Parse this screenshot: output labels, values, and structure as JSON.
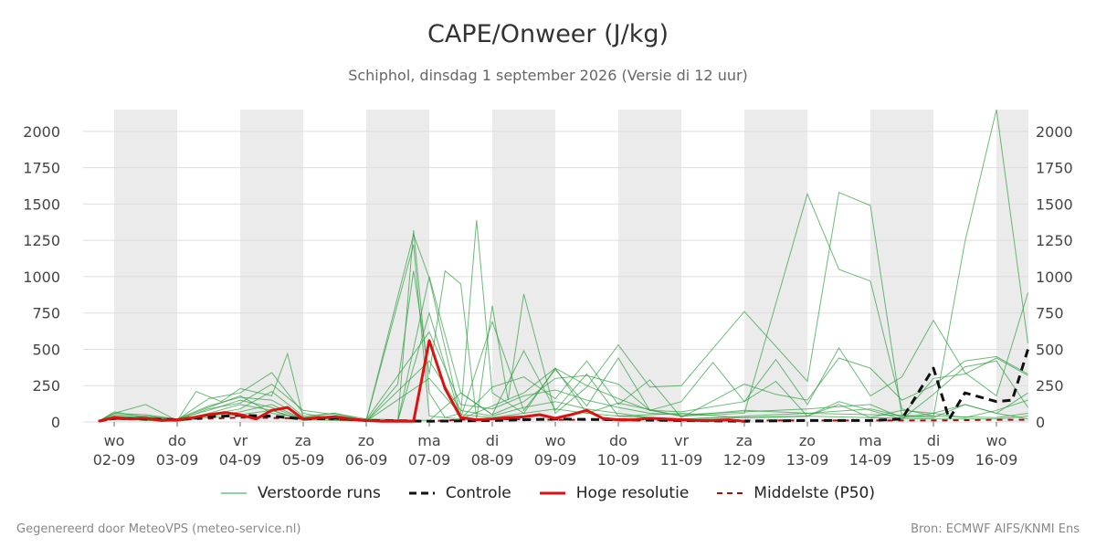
{
  "header": {
    "title": "CAPE/Onweer (J/kg)",
    "subtitle": "Schiphol, dinsdag  1 september 2026 (Versie di 12 uur)"
  },
  "footer": {
    "left": "Gegenereerd door MeteoVPS (meteo-service.nl)",
    "right": "Bron: ECMWF AIFS/KNMI Ens"
  },
  "colors": {
    "ensemble": "#2e9e3e",
    "control": "#111111",
    "high_res": "#dd1111",
    "median": "#a01010",
    "weekend_band": "#ebebeb",
    "grid": "#dddddd"
  },
  "chart_data": {
    "type": "line",
    "title": "CAPE/Onweer (J/kg)",
    "subtitle": "Schiphol, dinsdag  1 september 2026 (Versie di 12 uur)",
    "ylabel": "",
    "xlabel": "",
    "ylim": [
      0,
      2150
    ],
    "yticks": [
      0,
      250,
      500,
      750,
      1000,
      1250,
      1500,
      1750,
      2000
    ],
    "grid": true,
    "legend_position": "bottom",
    "x_range_days": [
      -0.25,
      15.5
    ],
    "x_ticks": [
      {
        "day": 0,
        "weekday": "wo",
        "date": "02-09"
      },
      {
        "day": 1,
        "weekday": "do",
        "date": "03-09"
      },
      {
        "day": 2,
        "weekday": "vr",
        "date": "04-09"
      },
      {
        "day": 3,
        "weekday": "za",
        "date": "05-09"
      },
      {
        "day": 4,
        "weekday": "zo",
        "date": "06-09"
      },
      {
        "day": 5,
        "weekday": "ma",
        "date": "07-09"
      },
      {
        "day": 6,
        "weekday": "di",
        "date": "08-09"
      },
      {
        "day": 7,
        "weekday": "wo",
        "date": "09-09"
      },
      {
        "day": 8,
        "weekday": "do",
        "date": "10-09"
      },
      {
        "day": 9,
        "weekday": "vr",
        "date": "11-09"
      },
      {
        "day": 10,
        "weekday": "za",
        "date": "12-09"
      },
      {
        "day": 11,
        "weekday": "zo",
        "date": "13-09"
      },
      {
        "day": 12,
        "weekday": "ma",
        "date": "14-09"
      },
      {
        "day": 13,
        "weekday": "di",
        "date": "15-09"
      },
      {
        "day": 14,
        "weekday": "wo",
        "date": "16-09"
      }
    ],
    "shaded_days": [
      [
        0,
        1
      ],
      [
        2,
        3
      ],
      [
        4,
        5
      ],
      [
        6,
        7
      ],
      [
        8,
        9
      ],
      [
        10,
        11
      ],
      [
        12,
        13
      ],
      [
        14,
        15.5
      ]
    ],
    "legend": [
      "Verstoorde runs",
      "Controle",
      "Hoge resolutie",
      "Middelste (P50)"
    ],
    "series": [
      {
        "name": "Hoge resolutie",
        "style": "solid-thick",
        "x": [
          -0.25,
          0,
          0.25,
          0.5,
          0.75,
          1,
          1.25,
          1.5,
          1.75,
          2,
          2.25,
          2.5,
          2.75,
          3,
          3.25,
          3.5,
          3.75,
          4,
          4.25,
          4.5,
          4.75,
          5,
          5.25,
          5.5,
          5.75,
          6,
          6.25,
          6.5,
          6.75,
          7,
          7.25,
          7.5,
          7.75,
          8,
          8.25,
          8.5,
          8.75,
          9,
          9.25,
          9.5,
          9.75,
          10
        ],
        "y": [
          5,
          30,
          20,
          25,
          10,
          15,
          30,
          50,
          65,
          50,
          20,
          80,
          100,
          20,
          30,
          35,
          20,
          10,
          5,
          5,
          5,
          560,
          230,
          30,
          15,
          20,
          30,
          35,
          50,
          25,
          50,
          80,
          25,
          15,
          15,
          25,
          20,
          15,
          10,
          10,
          15,
          5
        ]
      },
      {
        "name": "Controle",
        "style": "dashed-thick",
        "x": [
          -0.25,
          0,
          0.5,
          1,
          1.5,
          2,
          2.5,
          3,
          3.5,
          4,
          5,
          6,
          7,
          8,
          9,
          10,
          11,
          12,
          12.5,
          13,
          13.25,
          13.5,
          14,
          14.25,
          14.5
        ],
        "y": [
          5,
          25,
          20,
          15,
          35,
          45,
          40,
          20,
          25,
          10,
          5,
          10,
          20,
          15,
          10,
          5,
          10,
          10,
          20,
          370,
          20,
          200,
          140,
          150,
          500
        ]
      },
      {
        "name": "Middelste (P50)",
        "style": "dashed-thin",
        "x": [
          -0.25,
          0,
          1,
          2,
          3,
          4,
          5,
          5.5,
          6,
          7,
          8,
          9,
          10,
          11,
          12,
          13,
          14,
          14.5
        ],
        "y": [
          5,
          20,
          15,
          30,
          25,
          10,
          5,
          15,
          20,
          15,
          15,
          10,
          10,
          10,
          10,
          10,
          15,
          15
        ]
      }
    ],
    "ensemble_peaks_note_free": true,
    "ensemble_members": [
      {
        "x": [
          -0.25,
          0,
          0.5,
          1,
          1.3,
          1.7,
          2,
          2.5,
          2.75,
          3,
          3.5,
          4,
          5,
          5.5,
          6,
          6.5,
          7,
          7.5,
          8,
          9,
          10,
          11,
          11.5,
          12,
          12.5,
          13,
          13.5,
          14,
          14.5
        ],
        "y": [
          5,
          60,
          120,
          10,
          210,
          140,
          230,
          180,
          470,
          30,
          60,
          20,
          10,
          200,
          50,
          490,
          80,
          330,
          40,
          60,
          30,
          40,
          120,
          30,
          80,
          60,
          120,
          60,
          20
        ]
      },
      {
        "x": [
          -0.25,
          0,
          0.5,
          1,
          1.5,
          2,
          2.5,
          3,
          3.5,
          4,
          4.5,
          4.75,
          5,
          5.25,
          5.5,
          5.75,
          6,
          6.5,
          7,
          7.5,
          8,
          9,
          10,
          11,
          11.5,
          12,
          12.5,
          13,
          13.5,
          14,
          14.5
        ],
        "y": [
          5,
          50,
          40,
          20,
          80,
          150,
          100,
          20,
          40,
          10,
          0,
          1320,
          200,
          30,
          60,
          1390,
          200,
          60,
          370,
          60,
          130,
          40,
          60,
          1570,
          1050,
          970,
          90,
          40,
          1240,
          2150,
          540
        ]
      },
      {
        "x": [
          -0.25,
          0,
          0.5,
          1,
          1.5,
          2,
          2.5,
          3,
          3.5,
          4,
          4.5,
          4.75,
          5,
          5.25,
          5.5,
          5.75,
          6,
          6.25,
          6.5,
          7,
          7.5,
          8,
          8.5,
          9,
          10,
          11,
          11.5,
          12,
          12.5,
          13,
          13.5,
          14,
          14.5
        ],
        "y": [
          5,
          40,
          30,
          10,
          60,
          120,
          80,
          10,
          30,
          5,
          260,
          1040,
          330,
          1040,
          950,
          20,
          800,
          150,
          880,
          60,
          240,
          530,
          240,
          250,
          760,
          280,
          1580,
          1490,
          40,
          300,
          330,
          440,
          320
        ]
      },
      {
        "x": [
          -0.25,
          0,
          0.5,
          1,
          1.5,
          2,
          2.5,
          3,
          3.5,
          4,
          4.75,
          5,
          5.5,
          6,
          6.5,
          7,
          7.5,
          8,
          8.5,
          9,
          9.5,
          10,
          10.5,
          11,
          11.5,
          12,
          12.5,
          13,
          13.5,
          14,
          14.5
        ],
        "y": [
          5,
          70,
          30,
          20,
          100,
          180,
          60,
          30,
          20,
          10,
          1290,
          990,
          30,
          690,
          80,
          360,
          110,
          440,
          80,
          140,
          410,
          140,
          430,
          120,
          510,
          180,
          310,
          700,
          340,
          180,
          890
        ]
      },
      {
        "x": [
          -0.25,
          0,
          0.5,
          1,
          1.5,
          2,
          2.5,
          3,
          3.5,
          4,
          4.5,
          5,
          5.5,
          6,
          6.5,
          7,
          7.5,
          8,
          8.5,
          9,
          10,
          10.5,
          11,
          11.5,
          12,
          12.5,
          13,
          13.5,
          14,
          14.5
        ],
        "y": [
          5,
          30,
          20,
          15,
          160,
          200,
          340,
          60,
          20,
          5,
          5,
          750,
          20,
          240,
          310,
          160,
          420,
          120,
          290,
          30,
          260,
          190,
          150,
          440,
          370,
          150,
          250,
          420,
          450,
          330
        ]
      },
      {
        "x": [
          -0.25,
          0,
          0.5,
          1,
          1.5,
          2,
          2.5,
          3,
          3.5,
          4,
          4.5,
          5,
          5.5,
          6,
          6.5,
          7,
          7.5,
          8,
          8.5,
          9,
          10,
          10.5,
          11,
          11.5,
          12,
          12.5,
          13,
          13.5,
          14,
          14.5
        ],
        "y": [
          5,
          20,
          40,
          10,
          90,
          130,
          260,
          80,
          50,
          10,
          5,
          1000,
          200,
          50,
          140,
          300,
          320,
          260,
          80,
          70,
          140,
          280,
          40,
          140,
          80,
          20,
          190,
          380,
          420,
          100
        ]
      },
      {
        "x": [
          -0.25,
          0,
          0.5,
          1,
          1.5,
          2,
          2.5,
          3,
          3.5,
          4,
          4.75,
          5,
          5.5,
          6,
          6.5,
          7,
          7.5,
          8,
          8.5,
          9,
          10,
          11,
          12,
          12.5,
          13,
          13.5,
          14,
          14.5
        ],
        "y": [
          5,
          40,
          20,
          10,
          50,
          90,
          210,
          40,
          60,
          10,
          1220,
          40,
          20,
          110,
          200,
          370,
          250,
          160,
          80,
          40,
          80,
          60,
          90,
          40,
          30,
          120,
          60,
          200
        ]
      },
      {
        "x": [
          -0.25,
          0,
          0.5,
          1,
          1.5,
          2,
          2.5,
          3,
          3.5,
          4,
          5,
          5.5,
          6,
          6.5,
          7,
          7.5,
          8,
          8.5,
          9,
          10,
          11,
          12,
          12.5,
          13,
          13.5,
          14,
          14.5
        ],
        "y": [
          5,
          60,
          50,
          20,
          110,
          170,
          150,
          30,
          40,
          15,
          620,
          120,
          90,
          180,
          220,
          150,
          100,
          60,
          50,
          70,
          90,
          120,
          30,
          60,
          30,
          80,
          150
        ]
      },
      {
        "x": [
          -0.25,
          0,
          0.5,
          1,
          1.5,
          2,
          2.5,
          3,
          3.5,
          4,
          5,
          5.5,
          6,
          6.5,
          7,
          7.5,
          8,
          8.5,
          9,
          10,
          11,
          12,
          13,
          14,
          14.5
        ],
        "y": [
          5,
          30,
          10,
          5,
          40,
          70,
          120,
          20,
          20,
          5,
          420,
          80,
          40,
          100,
          140,
          90,
          60,
          30,
          20,
          40,
          60,
          50,
          40,
          30,
          60
        ]
      },
      {
        "x": [
          -0.25,
          0,
          0.5,
          1,
          1.5,
          2,
          2.5,
          3,
          3.5,
          4,
          5,
          5.5,
          6,
          6.5,
          7,
          7.5,
          8,
          9,
          10,
          11,
          12,
          13,
          14,
          14.5
        ],
        "y": [
          5,
          20,
          15,
          5,
          30,
          50,
          80,
          15,
          10,
          5,
          300,
          50,
          30,
          60,
          90,
          60,
          40,
          20,
          30,
          40,
          30,
          20,
          20,
          40
        ]
      }
    ]
  }
}
